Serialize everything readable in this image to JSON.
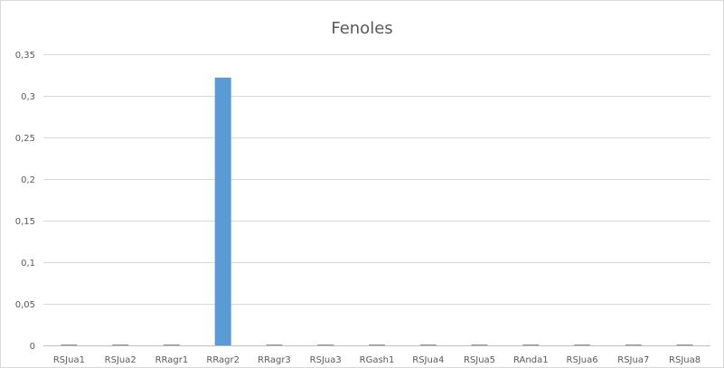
{
  "chart_data": {
    "type": "bar",
    "title": "Fenoles",
    "xlabel": "",
    "ylabel": "",
    "categories": [
      "RSJua1",
      "RSJua2",
      "RRagr1",
      "RRagr2",
      "RRagr3",
      "RSJua3",
      "RGash1",
      "RSJua4",
      "RSJua5",
      "RAnda1",
      "RSJua6",
      "RSJua7",
      "RSJua8"
    ],
    "values": [
      0.001,
      0.001,
      0.001,
      0.322,
      0.001,
      0.001,
      0.001,
      0.001,
      0.001,
      0.001,
      0.001,
      0.001,
      0.001
    ],
    "ylim": [
      0,
      0.35
    ],
    "yticks": [
      0,
      0.05,
      0.1,
      0.15,
      0.2,
      0.25,
      0.3,
      0.35
    ],
    "ytick_labels": [
      "0",
      "0,05",
      "0,1",
      "0,15",
      "0,2",
      "0,25",
      "0,3",
      "0,35"
    ],
    "grid": true,
    "legend": "none",
    "colors": {
      "bar": "#5b9bd5",
      "grid": "#d9d9d9",
      "axis": "#bfbfbf",
      "text": "#595959"
    }
  }
}
